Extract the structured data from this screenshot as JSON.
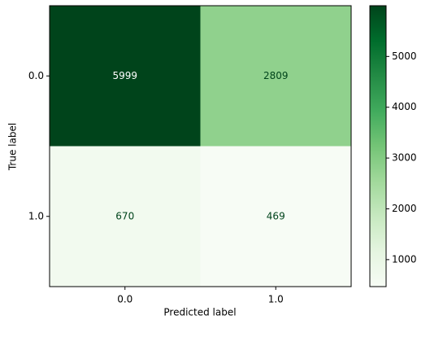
{
  "chart_data": {
    "type": "heatmap",
    "x_label": "Predicted label",
    "y_label": "True label",
    "x_categories": [
      "0.0",
      "1.0"
    ],
    "y_categories": [
      "0.0",
      "1.0"
    ],
    "values": [
      [
        5999,
        2809
      ],
      [
        670,
        469
      ]
    ],
    "colormap": "Greens",
    "colorbar_lim": [
      469,
      5999
    ],
    "colorbar_ticks": [
      1000,
      2000,
      3000,
      4000,
      5000
    ]
  }
}
